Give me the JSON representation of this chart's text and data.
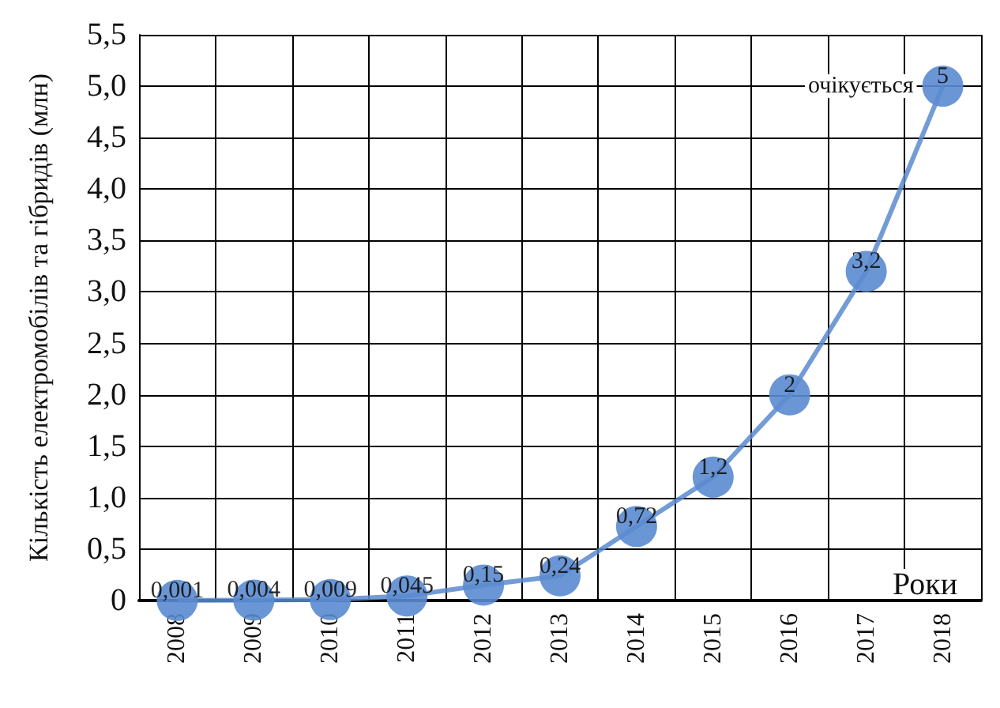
{
  "chart_data": {
    "type": "line",
    "ylabel": "Кількість електромобілів та гібридів (млн)",
    "xlabel": "Роки",
    "categories": [
      "2008",
      "2009",
      "2010",
      "2011",
      "2012",
      "2013",
      "2014",
      "2015",
      "2016",
      "2017",
      "2018"
    ],
    "series": [
      {
        "color": "#5b8bd0",
        "values": [
          0.001,
          0.004,
          0.009,
          0.045,
          0.15,
          0.24,
          0.72,
          1.2,
          2,
          3.2,
          5
        ],
        "value_labels": [
          "0,001",
          "0,004",
          "0,009",
          "0,045",
          "0,15",
          "0,24",
          "0,72",
          "1,2",
          "2",
          "3,2",
          "5"
        ]
      }
    ],
    "ylim": [
      0,
      5.5
    ],
    "yticks": [
      0,
      {
        "value": 0.5,
        "label": "0,5"
      },
      {
        "value": 1,
        "label": "1,0"
      },
      {
        "value": 1.5,
        "label": "1,5"
      },
      {
        "value": 2,
        "label": "2,0"
      },
      {
        "value": 2.5,
        "label": "2,5"
      },
      {
        "value": 3,
        "label": "3,0"
      },
      {
        "value": 3.5,
        "label": "3,5"
      },
      {
        "value": 4,
        "label": "4,0"
      },
      {
        "value": 4.5,
        "label": "4,5"
      },
      {
        "value": 5,
        "label": "5,0"
      },
      {
        "value": 5.5,
        "label": "5,5"
      }
    ],
    "grid": true,
    "marker": "circle",
    "line_style": "solid",
    "annotations": [
      {
        "text": "очікується",
        "x": "2018",
        "y": 5
      }
    ]
  }
}
